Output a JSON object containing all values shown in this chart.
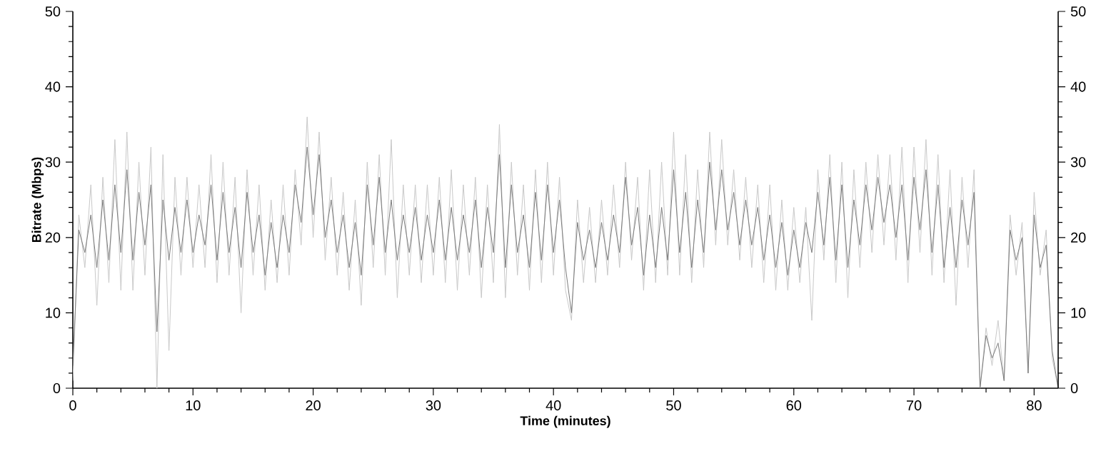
{
  "chart_data": {
    "type": "line",
    "xlabel": "Time (minutes)",
    "ylabel": "Bitrate (Mbps)",
    "xlim": [
      0,
      82
    ],
    "ylim": [
      0,
      50
    ],
    "y2lim": [
      0,
      50
    ],
    "xticks": [
      0,
      10,
      20,
      30,
      40,
      50,
      60,
      70,
      80
    ],
    "yticks": [
      0,
      10,
      20,
      30,
      40,
      50
    ],
    "y2ticks": [
      0,
      10,
      20,
      30,
      40,
      50
    ],
    "x": [
      0,
      0.5,
      1,
      1.5,
      2,
      2.5,
      3,
      3.5,
      4,
      4.5,
      5,
      5.5,
      6,
      6.5,
      7,
      7.5,
      8,
      8.5,
      9,
      9.5,
      10,
      10.5,
      11,
      11.5,
      12,
      12.5,
      13,
      13.5,
      14,
      14.5,
      15,
      15.5,
      16,
      16.5,
      17,
      17.5,
      18,
      18.5,
      19,
      19.5,
      20,
      20.5,
      21,
      21.5,
      22,
      22.5,
      23,
      23.5,
      24,
      24.5,
      25,
      25.5,
      26,
      26.5,
      27,
      27.5,
      28,
      28.5,
      29,
      29.5,
      30,
      30.5,
      31,
      31.5,
      32,
      32.5,
      33,
      33.5,
      34,
      34.5,
      35,
      35.5,
      36,
      36.5,
      37,
      37.5,
      38,
      38.5,
      39,
      39.5,
      40,
      40.5,
      41,
      41.5,
      42,
      42.5,
      43,
      43.5,
      44,
      44.5,
      45,
      45.5,
      46,
      46.5,
      47,
      47.5,
      48,
      48.5,
      49,
      49.5,
      50,
      50.5,
      51,
      51.5,
      52,
      52.5,
      53,
      53.5,
      54,
      54.5,
      55,
      55.5,
      56,
      56.5,
      57,
      57.5,
      58,
      58.5,
      59,
      59.5,
      60,
      60.5,
      61,
      61.5,
      62,
      62.5,
      63,
      63.5,
      64,
      64.5,
      65,
      65.5,
      66,
      66.5,
      67,
      67.5,
      68,
      68.5,
      69,
      69.5,
      70,
      70.5,
      71,
      71.5,
      72,
      72.5,
      73,
      73.5,
      74,
      74.5,
      75,
      75.5,
      76,
      76.5,
      77,
      77.5,
      78,
      78.5,
      79,
      79.5,
      80,
      80.5,
      81,
      81.5,
      82
    ],
    "series": [
      {
        "color": "#c8c8c8",
        "values": [
          1,
          23,
          16,
          27,
          11,
          28,
          14,
          33,
          13,
          34,
          13,
          30,
          15,
          32,
          0,
          31,
          5,
          28,
          15,
          28,
          16,
          27,
          16,
          31,
          14,
          30,
          15,
          28,
          10,
          29,
          15,
          27,
          13,
          25,
          14,
          27,
          15,
          29,
          19,
          36,
          20,
          34,
          17,
          28,
          15,
          26,
          13,
          25,
          11,
          30,
          16,
          31,
          15,
          33,
          12,
          27,
          15,
          27,
          14,
          27,
          15,
          28,
          14,
          29,
          13,
          27,
          15,
          28,
          12,
          27,
          14,
          35,
          12,
          30,
          15,
          27,
          13,
          29,
          14,
          30,
          15,
          28,
          13,
          9,
          25,
          14,
          24,
          14,
          25,
          15,
          27,
          16,
          30,
          17,
          28,
          13,
          29,
          14,
          30,
          15,
          34,
          15,
          31,
          14,
          29,
          16,
          34,
          19,
          33,
          19,
          29,
          17,
          28,
          16,
          27,
          14,
          27,
          13,
          25,
          13,
          24,
          14,
          24,
          9,
          29,
          17,
          31,
          14,
          30,
          12,
          29,
          16,
          30,
          18,
          31,
          19,
          31,
          17,
          32,
          14,
          32,
          18,
          33,
          15,
          31,
          14,
          29,
          11,
          28,
          16,
          29,
          0,
          8,
          3,
          9,
          1,
          23,
          15,
          22,
          2,
          26,
          15,
          21,
          4,
          0
        ]
      },
      {
        "color": "#7a7a7a",
        "values": [
          3,
          21,
          18,
          23,
          16,
          25,
          17,
          27,
          18,
          29,
          17,
          26,
          19,
          27,
          7.5,
          25,
          17,
          24,
          18,
          25,
          18,
          23,
          19,
          27,
          17,
          26,
          18,
          24,
          16,
          26,
          18,
          23,
          15,
          22,
          16,
          23,
          18,
          27,
          22,
          32,
          23,
          31,
          20,
          25,
          18,
          23,
          16,
          22,
          15,
          27,
          19,
          28,
          18,
          25,
          17,
          23,
          18,
          24,
          17,
          23,
          18,
          25,
          17,
          24,
          17,
          23,
          18,
          25,
          16,
          24,
          18,
          31,
          16,
          27,
          18,
          23,
          16,
          26,
          17,
          27,
          18,
          25,
          16,
          10,
          22,
          17,
          21,
          16,
          22,
          17,
          23,
          18,
          28,
          19,
          24,
          15,
          23,
          16,
          24,
          17,
          29,
          18,
          26,
          16,
          25,
          18,
          30,
          21,
          29,
          21,
          26,
          19,
          25,
          19,
          24,
          17,
          23,
          16,
          22,
          15,
          21,
          16,
          22,
          18,
          26,
          19,
          28,
          17,
          27,
          16,
          25,
          19,
          27,
          21,
          28,
          22,
          27,
          20,
          27,
          17,
          28,
          21,
          29,
          18,
          27,
          16,
          24,
          16,
          25,
          19,
          26,
          0,
          7,
          4,
          6,
          1,
          21,
          17,
          20,
          2,
          23,
          16,
          19,
          5,
          0
        ]
      }
    ]
  }
}
